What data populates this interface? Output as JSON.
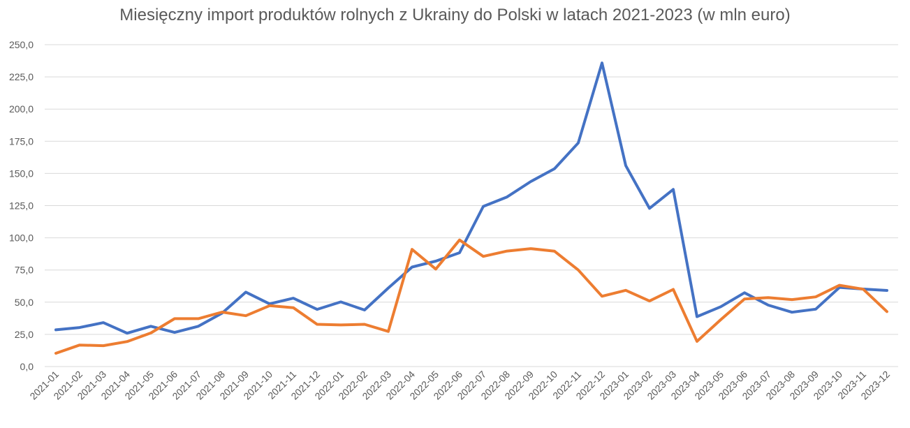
{
  "chart_data": {
    "type": "line",
    "title": "Miesięczny import produktów rolnych z Ukrainy do Polski w latach 2021-2023 (w mln euro)",
    "xlabel": "",
    "ylabel": "",
    "ylim": [
      0,
      250
    ],
    "y_ticks": [
      "0,0",
      "25,0",
      "50,0",
      "75,0",
      "100,0",
      "125,0",
      "150,0",
      "175,0",
      "200,0",
      "225,0",
      "250,0"
    ],
    "y_tick_values": [
      0,
      25,
      50,
      75,
      100,
      125,
      150,
      175,
      200,
      225,
      250
    ],
    "grid": true,
    "legend": "none",
    "categories": [
      "2021-01",
      "2021-02",
      "2021-03",
      "2021-04",
      "2021-05",
      "2021-06",
      "2021-07",
      "2021-08",
      "2021-09",
      "2021-10",
      "2021-11",
      "2021-12",
      "2022-01",
      "2022-02",
      "2022-03",
      "2022-04",
      "2022-05",
      "2022-06",
      "2022-07",
      "2022-08",
      "2022-09",
      "2022-10",
      "2022-11",
      "2022-12",
      "2023-01",
      "2023-02",
      "2023-03",
      "2023-04",
      "2023-05",
      "2023-06",
      "2023-07",
      "2023-08",
      "2023-09",
      "2023-10",
      "2023-11",
      "2023-12"
    ],
    "series": [
      {
        "color": "#4472c4",
        "values": [
          28.5,
          30.3,
          34.1,
          25.9,
          31.3,
          26.5,
          31.3,
          41.5,
          57.8,
          48.7,
          53.1,
          44.4,
          50.2,
          43.9,
          61.0,
          77.3,
          81.9,
          88.4,
          124.4,
          131.7,
          143.7,
          153.7,
          173.7,
          235.8,
          156.1,
          122.9,
          137.6,
          38.8,
          46.5,
          57.3,
          47.7,
          42.2,
          44.6,
          61.5,
          60.2,
          59.1
        ]
      },
      {
        "color": "#ed7d31",
        "values": [
          10.3,
          16.7,
          16.2,
          19.4,
          26.1,
          37.2,
          37.2,
          42.3,
          39.5,
          47.3,
          45.7,
          32.8,
          32.3,
          32.8,
          27.3,
          91.0,
          75.7,
          98.3,
          85.6,
          89.7,
          91.6,
          89.6,
          75.0,
          54.6,
          59.2,
          50.9,
          59.9,
          19.6,
          36.4,
          52.5,
          53.6,
          52.0,
          54.1,
          63.1,
          60.1,
          42.7
        ]
      }
    ]
  }
}
